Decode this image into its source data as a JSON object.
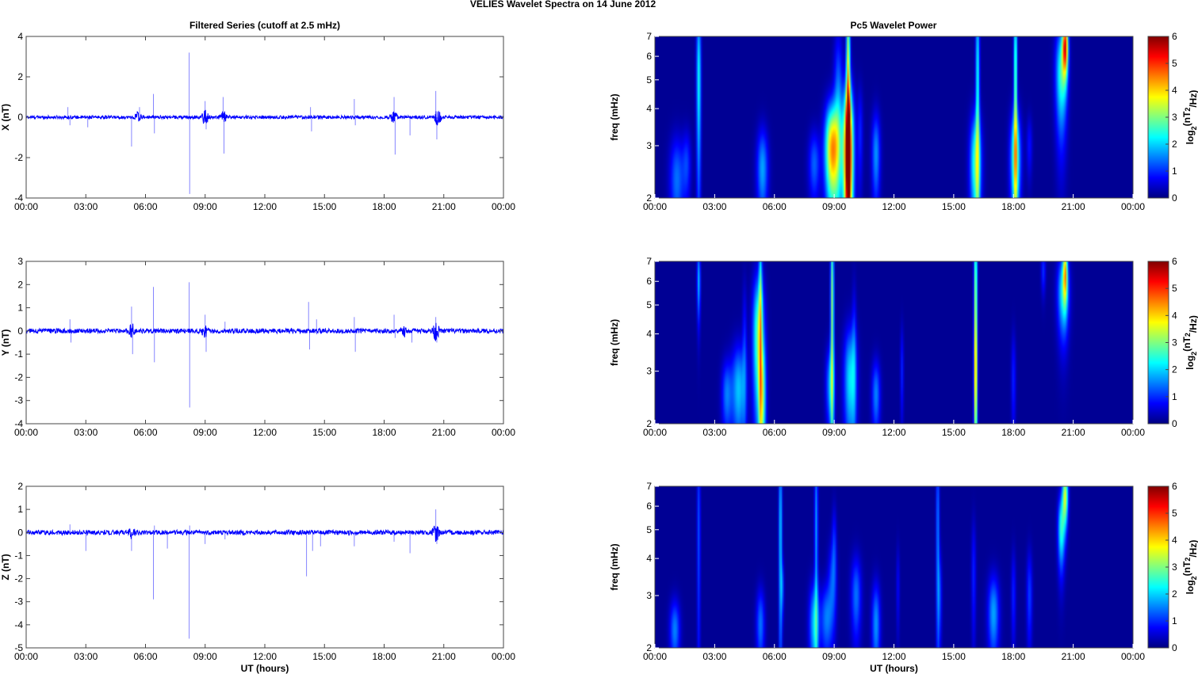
{
  "figure": {
    "suptitle": "VELIES Wavelet Spectra on 14 June      2012",
    "left_title": "Filtered Series (cutoff at 2.5 mHz)",
    "right_title": "Pc5 Wavelet Power",
    "xlabel": "UT (hours)",
    "freq_label": "freq (mHz)",
    "colorbar_label": "log2(nT2/Hz)",
    "colorbar_ticks": [
      "0",
      "1",
      "2",
      "3",
      "4",
      "5",
      "6"
    ]
  },
  "chart_data": [
    {
      "type": "line",
      "title": "Filtered Series (cutoff at 2.5 mHz)",
      "xlabel": "",
      "ylabel": "X (nT)",
      "xlim": [
        0,
        24
      ],
      "ylim": [
        -4,
        4
      ],
      "xticks": [
        "00:00",
        "03:00",
        "06:00",
        "09:00",
        "12:00",
        "15:00",
        "18:00",
        "21:00",
        "00:00"
      ],
      "yticks": [
        "-4",
        "-2",
        "0",
        "2",
        "4"
      ],
      "series_color": "#0000ff",
      "noise_amplitude": 0.08,
      "spikes": [
        [
          2.1,
          0.5
        ],
        [
          2.2,
          -0.4
        ],
        [
          3.1,
          -0.5
        ],
        [
          5.3,
          -1.45
        ],
        [
          5.7,
          0.5
        ],
        [
          6.4,
          1.15
        ],
        [
          6.45,
          -0.8
        ],
        [
          8.2,
          3.2
        ],
        [
          8.22,
          -3.8
        ],
        [
          9.0,
          0.8
        ],
        [
          9.05,
          -0.6
        ],
        [
          9.9,
          1.0
        ],
        [
          9.95,
          -1.8
        ],
        [
          14.3,
          0.5
        ],
        [
          14.35,
          -0.7
        ],
        [
          16.5,
          0.9
        ],
        [
          16.55,
          -0.4
        ],
        [
          18.5,
          1.0
        ],
        [
          18.55,
          -1.85
        ],
        [
          19.3,
          -0.9
        ],
        [
          20.6,
          1.3
        ],
        [
          20.65,
          -1.1
        ]
      ],
      "bursts": [
        [
          5.6,
          0.25
        ],
        [
          9.0,
          0.35
        ],
        [
          9.9,
          0.3
        ],
        [
          18.5,
          0.3
        ],
        [
          20.7,
          0.4
        ]
      ]
    },
    {
      "type": "line",
      "title": "",
      "xlabel": "",
      "ylabel": "Y (nT)",
      "xlim": [
        0,
        24
      ],
      "ylim": [
        -4,
        3
      ],
      "xticks": [
        "00:00",
        "03:00",
        "06:00",
        "09:00",
        "12:00",
        "15:00",
        "18:00",
        "21:00",
        "00:00"
      ],
      "yticks": [
        "-4",
        "-3",
        "-2",
        "-1",
        "0",
        "1",
        "2",
        "3"
      ],
      "series_color": "#0000ff",
      "noise_amplitude": 0.1,
      "spikes": [
        [
          2.2,
          0.5
        ],
        [
          2.25,
          -0.5
        ],
        [
          5.3,
          1.05
        ],
        [
          5.35,
          -1.0
        ],
        [
          6.4,
          1.9
        ],
        [
          6.45,
          -1.35
        ],
        [
          8.2,
          2.1
        ],
        [
          8.22,
          -3.3
        ],
        [
          9.0,
          0.7
        ],
        [
          9.05,
          -0.9
        ],
        [
          10.0,
          0.4
        ],
        [
          14.2,
          1.25
        ],
        [
          14.25,
          -0.8
        ],
        [
          14.6,
          0.5
        ],
        [
          16.5,
          0.6
        ],
        [
          16.55,
          -0.9
        ],
        [
          18.5,
          0.7
        ],
        [
          18.55,
          -0.3
        ],
        [
          19.4,
          -0.5
        ],
        [
          20.6,
          0.6
        ],
        [
          20.65,
          -0.5
        ]
      ],
      "bursts": [
        [
          5.3,
          0.3
        ],
        [
          9.0,
          0.25
        ],
        [
          19.0,
          0.2
        ],
        [
          20.6,
          0.35
        ]
      ]
    },
    {
      "type": "line",
      "title": "",
      "xlabel": "UT (hours)",
      "ylabel": "Z (nT)",
      "xlim": [
        0,
        24
      ],
      "ylim": [
        -5,
        2
      ],
      "xticks": [
        "00:00",
        "03:00",
        "06:00",
        "09:00",
        "12:00",
        "15:00",
        "18:00",
        "21:00",
        "00:00"
      ],
      "yticks": [
        "-5",
        "-4",
        "-3",
        "-2",
        "-1",
        "0",
        "1",
        "2"
      ],
      "series_color": "#0000ff",
      "noise_amplitude": 0.1,
      "spikes": [
        [
          2.2,
          0.35
        ],
        [
          3.0,
          -0.8
        ],
        [
          5.3,
          -0.8
        ],
        [
          6.4,
          -2.9
        ],
        [
          6.45,
          0.3
        ],
        [
          7.1,
          -0.7
        ],
        [
          8.2,
          -4.6
        ],
        [
          8.22,
          0.3
        ],
        [
          9.0,
          -0.5
        ],
        [
          10.0,
          -0.3
        ],
        [
          14.1,
          -1.9
        ],
        [
          14.4,
          -0.8
        ],
        [
          14.8,
          -0.6
        ],
        [
          16.5,
          -0.6
        ],
        [
          18.5,
          -0.4
        ],
        [
          19.3,
          -0.9
        ],
        [
          20.6,
          1.0
        ],
        [
          20.65,
          -0.5
        ]
      ],
      "bursts": [
        [
          5.3,
          0.2
        ],
        [
          20.6,
          0.35
        ]
      ]
    },
    {
      "type": "heatmap",
      "title": "Pc5 Wavelet Power",
      "xlabel": "",
      "ylabel": "freq (mHz)",
      "xlim": [
        0,
        24
      ],
      "ylim": [
        2,
        7
      ],
      "yscale": "log",
      "xticks": [
        "00:00",
        "03:00",
        "06:00",
        "09:00",
        "12:00",
        "15:00",
        "18:00",
        "21:00",
        "00:00"
      ],
      "yticks": [
        "2",
        "3",
        "4",
        "5",
        "6",
        "7"
      ],
      "colorbar": {
        "label": "log2(nT2/Hz)",
        "range": [
          0,
          6
        ],
        "colormap": "jet"
      },
      "blobs": [
        [
          1.1,
          2.3,
          0.25,
          0.6,
          1.3
        ],
        [
          1.6,
          2.6,
          0.15,
          0.5,
          0.9
        ],
        [
          2.2,
          5.0,
          0.08,
          2.5,
          2.2
        ],
        [
          5.4,
          2.5,
          0.2,
          0.6,
          1.6
        ],
        [
          8.0,
          2.6,
          0.2,
          0.5,
          1.2
        ],
        [
          8.9,
          2.9,
          0.25,
          0.8,
          4.2
        ],
        [
          9.2,
          4.0,
          0.15,
          2.0,
          1.4
        ],
        [
          9.7,
          2.8,
          0.18,
          1.2,
          5.8
        ],
        [
          9.7,
          5.0,
          0.07,
          3.0,
          3.5
        ],
        [
          10.3,
          3.3,
          0.1,
          0.9,
          0.8
        ],
        [
          11.1,
          2.8,
          0.15,
          0.7,
          1.5
        ],
        [
          16.1,
          2.6,
          0.2,
          0.8,
          2.5
        ],
        [
          16.2,
          5.0,
          0.07,
          3.0,
          2.2
        ],
        [
          18.1,
          2.7,
          0.18,
          0.8,
          2.7
        ],
        [
          18.1,
          5.0,
          0.06,
          3.0,
          2.8
        ],
        [
          18.8,
          3.0,
          0.1,
          0.5,
          0.7
        ],
        [
          20.4,
          5.2,
          0.2,
          1.5,
          2.4
        ],
        [
          20.6,
          6.5,
          0.1,
          1.0,
          4.5
        ]
      ]
    },
    {
      "type": "heatmap",
      "title": "",
      "xlabel": "",
      "ylabel": "freq (mHz)",
      "xlim": [
        0,
        24
      ],
      "ylim": [
        2,
        7
      ],
      "yscale": "log",
      "xticks": [
        "00:00",
        "03:00",
        "06:00",
        "09:00",
        "12:00",
        "15:00",
        "18:00",
        "21:00",
        "00:00"
      ],
      "yticks": [
        "2",
        "3",
        "4",
        "5",
        "6",
        "7"
      ],
      "colorbar": {
        "label": "log2(nT2/Hz)",
        "range": [
          0,
          6
        ],
        "colormap": "jet"
      },
      "blobs": [
        [
          2.2,
          6.0,
          0.06,
          1.2,
          1.8
        ],
        [
          3.6,
          2.5,
          0.18,
          0.5,
          1.3
        ],
        [
          4.2,
          2.6,
          0.25,
          0.7,
          1.8
        ],
        [
          4.5,
          3.5,
          0.08,
          1.5,
          0.8
        ],
        [
          5.2,
          3.9,
          0.2,
          1.5,
          2.8
        ],
        [
          5.3,
          5.0,
          0.06,
          3.0,
          2.0
        ],
        [
          5.4,
          2.4,
          0.12,
          0.8,
          2.2
        ],
        [
          8.8,
          2.7,
          0.15,
          0.6,
          1.6
        ],
        [
          8.9,
          5.0,
          0.06,
          3.0,
          3.0
        ],
        [
          9.8,
          2.8,
          0.22,
          0.9,
          2.0
        ],
        [
          10.0,
          3.5,
          0.08,
          1.5,
          0.8
        ],
        [
          11.1,
          2.5,
          0.15,
          0.5,
          1.4
        ],
        [
          12.4,
          3.0,
          0.06,
          0.8,
          0.8
        ],
        [
          16.1,
          2.8,
          0.06,
          1.0,
          1.8
        ],
        [
          16.1,
          5.0,
          0.06,
          3.0,
          3.2
        ],
        [
          18.0,
          2.8,
          0.08,
          0.8,
          0.8
        ],
        [
          19.5,
          6.5,
          0.08,
          0.8,
          0.9
        ],
        [
          20.5,
          5.5,
          0.2,
          1.2,
          2.2
        ],
        [
          20.6,
          6.5,
          0.08,
          1.0,
          3.0
        ]
      ]
    },
    {
      "type": "heatmap",
      "title": "",
      "xlabel": "UT (hours)",
      "ylabel": "freq (mHz)",
      "xlim": [
        0,
        24
      ],
      "ylim": [
        2,
        7
      ],
      "yscale": "log",
      "xticks": [
        "00:00",
        "03:00",
        "06:00",
        "09:00",
        "12:00",
        "15:00",
        "18:00",
        "21:00",
        "00:00"
      ],
      "yticks": [
        "2",
        "3",
        "4",
        "5",
        "6",
        "7"
      ],
      "colorbar": {
        "label": "log2(nT2/Hz)",
        "range": [
          0,
          6
        ],
        "colormap": "jet"
      },
      "blobs": [
        [
          1.0,
          2.3,
          0.18,
          0.4,
          1.4
        ],
        [
          2.2,
          5.0,
          0.06,
          3.0,
          1.1
        ],
        [
          5.3,
          2.4,
          0.15,
          0.5,
          1.3
        ],
        [
          6.3,
          5.0,
          0.06,
          3.0,
          1.9
        ],
        [
          6.4,
          3.2,
          0.06,
          0.5,
          1.0
        ],
        [
          8.0,
          2.4,
          0.18,
          0.6,
          1.8
        ],
        [
          8.1,
          5.0,
          0.06,
          3.0,
          1.6
        ],
        [
          8.6,
          2.5,
          0.2,
          0.5,
          1.3
        ],
        [
          8.9,
          3.3,
          0.15,
          0.8,
          1.0
        ],
        [
          9.0,
          4.5,
          0.08,
          1.0,
          0.8
        ],
        [
          10.1,
          3.0,
          0.18,
          0.7,
          1.3
        ],
        [
          11.1,
          2.4,
          0.15,
          0.6,
          1.5
        ],
        [
          12.2,
          3.2,
          0.06,
          0.8,
          0.6
        ],
        [
          14.2,
          5.0,
          0.06,
          3.0,
          1.4
        ],
        [
          14.3,
          3.0,
          0.08,
          0.8,
          0.9
        ],
        [
          16.0,
          3.5,
          0.08,
          1.2,
          0.8
        ],
        [
          17.0,
          2.6,
          0.2,
          0.6,
          1.6
        ],
        [
          18.0,
          3.0,
          0.08,
          0.8,
          0.8
        ],
        [
          18.8,
          3.0,
          0.1,
          0.8,
          1.0
        ],
        [
          20.4,
          5.0,
          0.12,
          1.0,
          2.3
        ],
        [
          20.6,
          6.5,
          0.1,
          1.0,
          3.3
        ]
      ]
    }
  ]
}
